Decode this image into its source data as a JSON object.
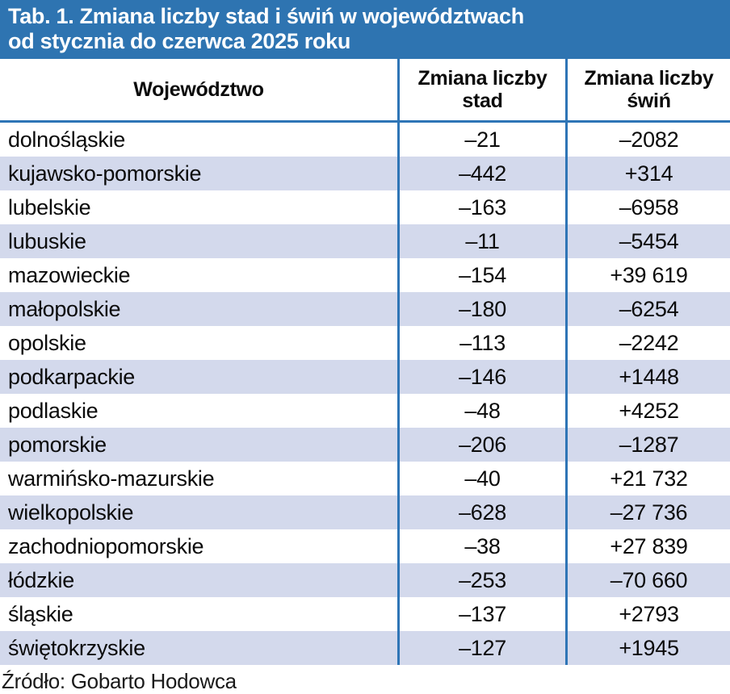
{
  "title": {
    "line1": "Tab. 1. Zmiana liczby stad i świń w województwach",
    "line2": "od stycznia do czerwca 2025 roku"
  },
  "table": {
    "headers": [
      {
        "label": "Województwo"
      },
      {
        "label": "Zmiana liczby stad"
      },
      {
        "label": "Zmiana liczby świń"
      }
    ],
    "rows": [
      [
        "dolnośląskie",
        "–21",
        "–2082"
      ],
      [
        "kujawsko-pomorskie",
        "–442",
        "+314"
      ],
      [
        "lubelskie",
        "–163",
        "–6958"
      ],
      [
        "lubuskie",
        "–11",
        "–5454"
      ],
      [
        "mazowieckie",
        "–154",
        "+39 619"
      ],
      [
        "małopolskie",
        "–180",
        "–6254"
      ],
      [
        "opolskie",
        "–113",
        "–2242"
      ],
      [
        "podkarpackie",
        "–146",
        "+1448"
      ],
      [
        "podlaskie",
        "–48",
        "+4252"
      ],
      [
        "pomorskie",
        "–206",
        "–1287"
      ],
      [
        "warmińsko-mazurskie",
        "–40",
        "+21 732"
      ],
      [
        "wielkopolskie",
        "–628",
        "–27 736"
      ],
      [
        "zachodniopomorskie",
        "–38",
        "+27 839"
      ],
      [
        "łódzkie",
        "–253",
        "–70 660"
      ],
      [
        "śląskie",
        "–137",
        "+2793"
      ],
      [
        "świętokrzyskie",
        "–127",
        "+1945"
      ]
    ]
  },
  "source": "Źródło: Gobarto Hodowca",
  "colors": {
    "title_bg": "#2e74b1",
    "grid_line": "#2e75b6",
    "stripe": "#d3d9ec",
    "title_text": "#ffffff",
    "body_text": "#0b0b0b"
  },
  "chart_data": {
    "type": "table",
    "title": "Tab. 1. Zmiana liczby stad i świń w województwach od stycznia do czerwca 2025 roku",
    "columns": [
      "Województwo",
      "Zmiana liczby stad",
      "Zmiana liczby świń"
    ],
    "categories": [
      "dolnośląskie",
      "kujawsko-pomorskie",
      "lubelskie",
      "lubuskie",
      "mazowieckie",
      "małopolskie",
      "opolskie",
      "podkarpackie",
      "podlaskie",
      "pomorskie",
      "warmińsko-mazurskie",
      "wielkopolskie",
      "zachodniopomorskie",
      "łódzkie",
      "śląskie",
      "świętokrzyskie"
    ],
    "series": [
      {
        "name": "Zmiana liczby stad",
        "values": [
          -21,
          -442,
          -163,
          -11,
          -154,
          -180,
          -113,
          -146,
          -48,
          -206,
          -40,
          -628,
          -38,
          -253,
          -137,
          -127
        ]
      },
      {
        "name": "Zmiana liczby świń",
        "values": [
          -2082,
          314,
          -6958,
          -5454,
          39619,
          -6254,
          -2242,
          1448,
          4252,
          -1287,
          21732,
          -27736,
          27839,
          -70660,
          2793,
          1945
        ]
      }
    ],
    "source": "Źródło: Gobarto Hodowca"
  }
}
